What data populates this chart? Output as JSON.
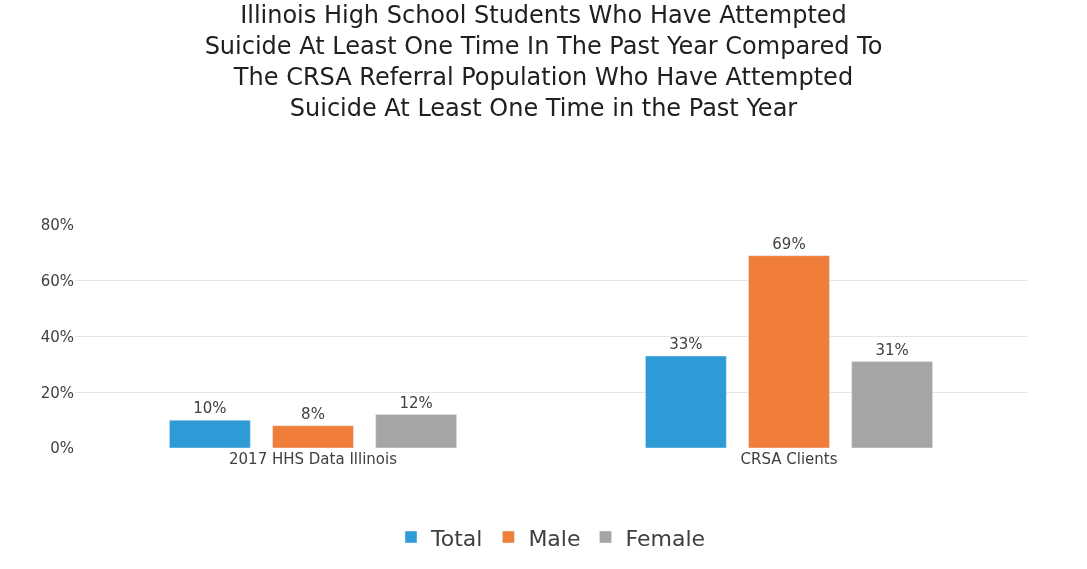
{
  "chart_data": {
    "type": "bar",
    "title": "Illinois High School Students Who Have Attempted Suicide At Least One Time In The Past Year Compared To The CRSA Referral Population Who Have Attempted Suicide At Least One Time in the Past Year",
    "categories": [
      "2017 HHS Data Illinois",
      "CRSA Clients"
    ],
    "series": [
      {
        "name": "Total",
        "color": "#2e9bd6",
        "values": [
          10,
          33
        ],
        "value_labels": [
          "10%",
          "33%"
        ]
      },
      {
        "name": "Male",
        "color": "#f07d3a",
        "values": [
          8,
          69
        ],
        "value_labels": [
          "8%",
          "69%"
        ]
      },
      {
        "name": "Female",
        "color": "#a5a5a5",
        "values": [
          12,
          31
        ],
        "value_labels": [
          "12%",
          "31%"
        ]
      }
    ],
    "ylim": [
      0,
      80
    ],
    "yticks": [
      {
        "value": 0,
        "label": "0%"
      },
      {
        "value": 20,
        "label": "20%"
      },
      {
        "value": 40,
        "label": "40%"
      },
      {
        "value": 60,
        "label": "60%"
      },
      {
        "value": 80,
        "label": "80%"
      }
    ],
    "grid": "y",
    "legend": "bottom"
  }
}
